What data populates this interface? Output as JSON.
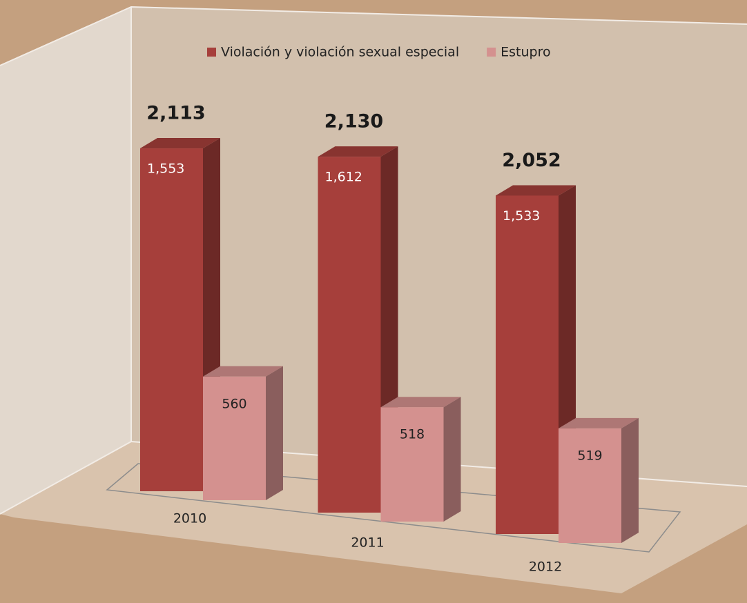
{
  "chart_data": {
    "type": "bar3d",
    "categories": [
      "2010",
      "2011",
      "2012"
    ],
    "series": [
      {
        "name": "Violación y violación sexual especial",
        "color": "#a63f3b",
        "values": [
          1553,
          1612,
          1533
        ],
        "value_labels": [
          "1,553",
          "1,612",
          "1,533"
        ]
      },
      {
        "name": "Estupro",
        "color": "#d4918f",
        "values": [
          560,
          518,
          519
        ]
      }
    ],
    "totals": {
      "values": [
        2113,
        2130,
        2052
      ],
      "value_labels": [
        "2,113",
        "2,130",
        "2,052"
      ]
    }
  }
}
